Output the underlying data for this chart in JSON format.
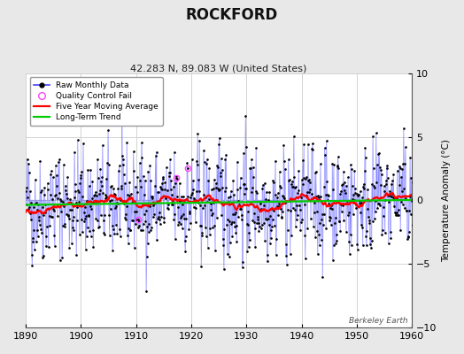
{
  "title": "ROCKFORD",
  "subtitle": "42.283 N, 89.083 W (United States)",
  "ylabel": "Temperature Anomaly (°C)",
  "watermark": "Berkeley Earth",
  "xlim": [
    1890,
    1960
  ],
  "ylim": [
    -10,
    10
  ],
  "yticks": [
    -10,
    -5,
    0,
    5,
    10
  ],
  "xticks": [
    1890,
    1900,
    1910,
    1920,
    1930,
    1940,
    1950,
    1960
  ],
  "background_color": "#e8e8e8",
  "plot_bg_color": "#ffffff",
  "grid_color": "#cccccc",
  "raw_line_color": "#4444ff",
  "raw_dot_color": "#000000",
  "moving_avg_color": "#ff0000",
  "trend_color": "#00cc00",
  "qc_fail_color": "#ff44ff",
  "seed": 42,
  "n_years": 71,
  "start_year": 1890,
  "trend_slope": 0.0055,
  "trend_intercept": -0.35,
  "qc_fail_indices": [
    245,
    328,
    352
  ],
  "moving_avg_window": 60
}
